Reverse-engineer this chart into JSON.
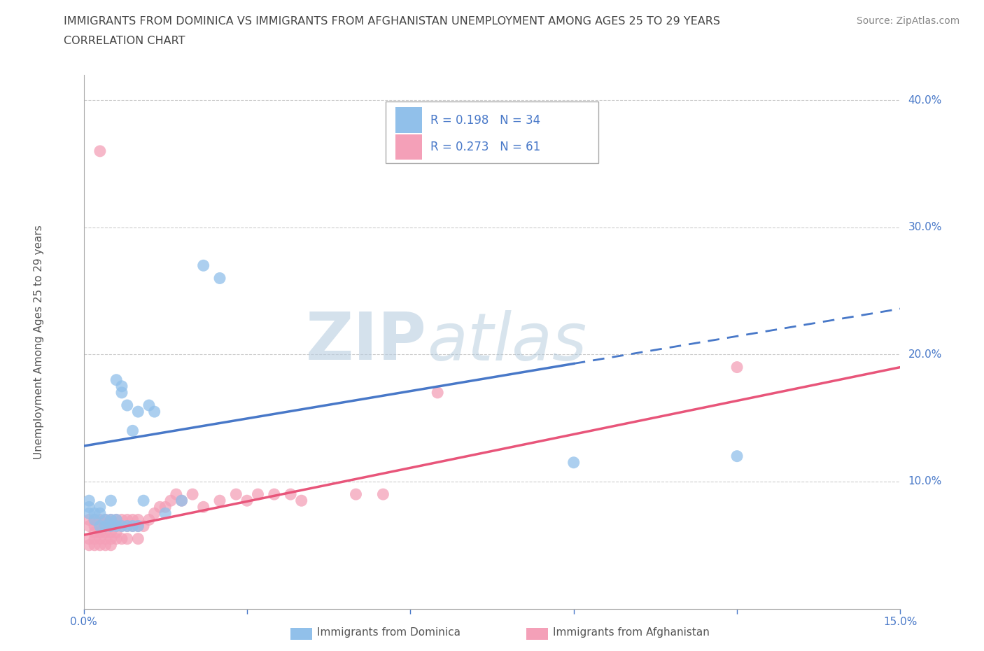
{
  "title_line1": "IMMIGRANTS FROM DOMINICA VS IMMIGRANTS FROM AFGHANISTAN UNEMPLOYMENT AMONG AGES 25 TO 29 YEARS",
  "title_line2": "CORRELATION CHART",
  "source": "Source: ZipAtlas.com",
  "ylabel": "Unemployment Among Ages 25 to 29 years",
  "xlim": [
    0.0,
    0.15
  ],
  "ylim": [
    0.0,
    0.42
  ],
  "xticks": [
    0.0,
    0.03,
    0.06,
    0.09,
    0.12,
    0.15
  ],
  "xtick_labels": [
    "0.0%",
    "",
    "",
    "",
    "",
    "15.0%"
  ],
  "ytick_positions": [
    0.1,
    0.2,
    0.3,
    0.4
  ],
  "ytick_labels": [
    "10.0%",
    "20.0%",
    "30.0%",
    "40.0%"
  ],
  "dominica_color": "#91c0ea",
  "afghanistan_color": "#f4a0b8",
  "dominica_line_color": "#4878c8",
  "afghanistan_line_color": "#e8557a",
  "dominica_R": 0.198,
  "dominica_N": 34,
  "afghanistan_R": 0.273,
  "afghanistan_N": 61,
  "legend_label_1": "Immigrants from Dominica",
  "legend_label_2": "Immigrants from Afghanistan",
  "watermark_zip": "ZIP",
  "watermark_atlas": "atlas",
  "background_color": "#ffffff",
  "grid_color": "#cccccc",
  "title_color": "#555555",
  "axis_color": "#4878c8",
  "dominica_line_intercept": 0.128,
  "dominica_line_slope": 0.72,
  "dominica_line_solid_end": 0.09,
  "afghanistan_line_intercept": 0.058,
  "afghanistan_line_slope": 0.88,
  "dominica_x": [
    0.001,
    0.001,
    0.001,
    0.002,
    0.002,
    0.003,
    0.003,
    0.003,
    0.004,
    0.004,
    0.005,
    0.005,
    0.005,
    0.006,
    0.006,
    0.006,
    0.007,
    0.007,
    0.007,
    0.008,
    0.008,
    0.009,
    0.009,
    0.01,
    0.01,
    0.011,
    0.012,
    0.013,
    0.015,
    0.018,
    0.022,
    0.025,
    0.09,
    0.12
  ],
  "dominica_y": [
    0.075,
    0.08,
    0.085,
    0.07,
    0.075,
    0.065,
    0.075,
    0.08,
    0.065,
    0.07,
    0.065,
    0.07,
    0.085,
    0.065,
    0.07,
    0.18,
    0.065,
    0.17,
    0.175,
    0.065,
    0.16,
    0.065,
    0.14,
    0.065,
    0.155,
    0.085,
    0.16,
    0.155,
    0.075,
    0.085,
    0.27,
    0.26,
    0.115,
    0.12
  ],
  "afghanistan_x": [
    0.001,
    0.001,
    0.001,
    0.001,
    0.002,
    0.002,
    0.002,
    0.002,
    0.002,
    0.003,
    0.003,
    0.003,
    0.003,
    0.003,
    0.003,
    0.004,
    0.004,
    0.004,
    0.004,
    0.004,
    0.005,
    0.005,
    0.005,
    0.005,
    0.005,
    0.006,
    0.006,
    0.006,
    0.006,
    0.007,
    0.007,
    0.007,
    0.008,
    0.008,
    0.008,
    0.009,
    0.009,
    0.01,
    0.01,
    0.01,
    0.011,
    0.012,
    0.013,
    0.014,
    0.015,
    0.016,
    0.017,
    0.018,
    0.02,
    0.022,
    0.025,
    0.028,
    0.03,
    0.032,
    0.035,
    0.038,
    0.04,
    0.05,
    0.055,
    0.065,
    0.12
  ],
  "afghanistan_y": [
    0.065,
    0.07,
    0.055,
    0.05,
    0.065,
    0.07,
    0.055,
    0.05,
    0.06,
    0.065,
    0.07,
    0.055,
    0.06,
    0.05,
    0.36,
    0.065,
    0.07,
    0.055,
    0.06,
    0.05,
    0.065,
    0.07,
    0.055,
    0.06,
    0.05,
    0.065,
    0.07,
    0.055,
    0.06,
    0.065,
    0.07,
    0.055,
    0.065,
    0.07,
    0.055,
    0.065,
    0.07,
    0.065,
    0.07,
    0.055,
    0.065,
    0.07,
    0.075,
    0.08,
    0.08,
    0.085,
    0.09,
    0.085,
    0.09,
    0.08,
    0.085,
    0.09,
    0.085,
    0.09,
    0.09,
    0.09,
    0.085,
    0.09,
    0.09,
    0.17,
    0.19
  ]
}
